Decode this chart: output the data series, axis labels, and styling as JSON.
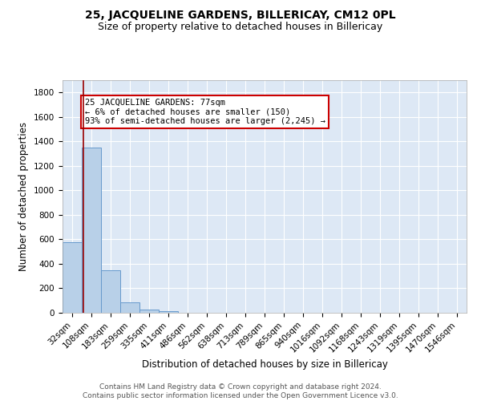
{
  "title": "25, JACQUELINE GARDENS, BILLERICAY, CM12 0PL",
  "subtitle": "Size of property relative to detached houses in Billericay",
  "xlabel": "Distribution of detached houses by size in Billericay",
  "ylabel": "Number of detached properties",
  "footer_line1": "Contains HM Land Registry data © Crown copyright and database right 2024.",
  "footer_line2": "Contains public sector information licensed under the Open Government Licence v3.0.",
  "bin_labels": [
    "32sqm",
    "108sqm",
    "183sqm",
    "259sqm",
    "335sqm",
    "411sqm",
    "486sqm",
    "562sqm",
    "638sqm",
    "713sqm",
    "789sqm",
    "865sqm",
    "940sqm",
    "1016sqm",
    "1092sqm",
    "1168sqm",
    "1243sqm",
    "1319sqm",
    "1395sqm",
    "1470sqm",
    "1546sqm"
  ],
  "bar_heights": [
    575,
    1350,
    350,
    88,
    28,
    15,
    0,
    0,
    0,
    0,
    0,
    0,
    0,
    0,
    0,
    0,
    0,
    0,
    0,
    0,
    0
  ],
  "bar_color": "#b8d0e8",
  "bar_edge_color": "#6699cc",
  "property_line_x": 0.595,
  "property_line_color": "#990000",
  "annotation_text": "25 JACQUELINE GARDENS: 77sqm\n← 6% of detached houses are smaller (150)\n93% of semi-detached houses are larger (2,245) →",
  "annotation_box_color": "#ffffff",
  "annotation_box_edge_color": "#cc0000",
  "ylim": [
    0,
    1900
  ],
  "yticks": [
    0,
    200,
    400,
    600,
    800,
    1000,
    1200,
    1400,
    1600,
    1800
  ],
  "background_color": "#dde8f5",
  "grid_color": "#ffffff",
  "title_fontsize": 10,
  "subtitle_fontsize": 9,
  "axis_label_fontsize": 8.5,
  "tick_fontsize": 7.5,
  "annotation_fontsize": 7.5,
  "footer_fontsize": 6.5
}
